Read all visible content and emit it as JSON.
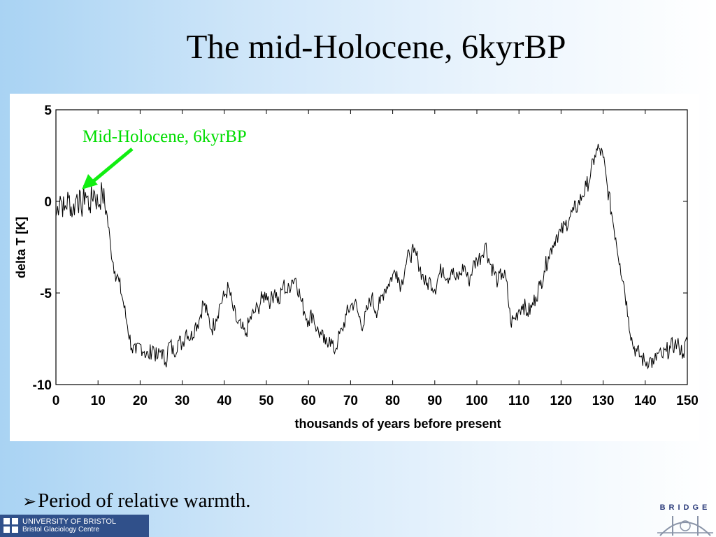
{
  "slide": {
    "title": "The mid-Holocene, 6kyrBP",
    "bullet": "Period of relative warmth.",
    "bullet_icon": "arrow-bullet-icon"
  },
  "footer": {
    "university_line1": "UNIVERSITY OF BRISTOL",
    "university_line2": "Bristol Glaciology Centre",
    "bridge_text": "BRIDGE"
  },
  "chart_data": {
    "type": "line",
    "title": "",
    "xlabel": "thousands of years before present",
    "ylabel": "delta T [K]",
    "xlim": [
      0,
      150
    ],
    "ylim": [
      -10,
      5
    ],
    "xticks": [
      0,
      10,
      20,
      30,
      40,
      50,
      60,
      70,
      80,
      90,
      100,
      110,
      120,
      130,
      140,
      150
    ],
    "yticks": [
      5,
      0,
      -5,
      -10
    ],
    "grid": false,
    "line_color": "#000000",
    "annotation": {
      "text": "Mid-Holocene, 6kyrBP",
      "x": 6,
      "y": 0.8,
      "color": "#00dd00"
    },
    "series": [
      {
        "name": "",
        "x": [
          0,
          1,
          2,
          3,
          4,
          5,
          6,
          7,
          8,
          9,
          10,
          11,
          12,
          13,
          14,
          15,
          16,
          17,
          18,
          19,
          20,
          21,
          22,
          23,
          24,
          25,
          26,
          27,
          28,
          29,
          30,
          31,
          32,
          33,
          34,
          35,
          36,
          37,
          38,
          39,
          40,
          41,
          42,
          43,
          44,
          45,
          46,
          47,
          48,
          49,
          50,
          51,
          52,
          53,
          54,
          55,
          56,
          57,
          58,
          59,
          60,
          61,
          62,
          63,
          64,
          65,
          66,
          67,
          68,
          69,
          70,
          71,
          72,
          73,
          74,
          75,
          76,
          77,
          78,
          79,
          80,
          81,
          82,
          83,
          84,
          85,
          86,
          87,
          88,
          89,
          90,
          91,
          92,
          93,
          94,
          95,
          96,
          97,
          98,
          99,
          100,
          101,
          102,
          103,
          104,
          105,
          106,
          107,
          108,
          109,
          110,
          111,
          112,
          113,
          114,
          115,
          116,
          117,
          118,
          119,
          120,
          121,
          122,
          123,
          124,
          125,
          126,
          127,
          128,
          129,
          130,
          131,
          132,
          133,
          134,
          135,
          136,
          137,
          138,
          139,
          140,
          141,
          142,
          143,
          144,
          145,
          146,
          147,
          148,
          149,
          150
        ],
        "y": [
          -0.8,
          0.3,
          -0.5,
          0.2,
          -0.6,
          0.4,
          -0.4,
          0.5,
          -0.3,
          0.6,
          -0.2,
          0.5,
          -0.5,
          -2.5,
          -3.8,
          -4.4,
          -5.5,
          -6.8,
          -8.0,
          -8.3,
          -7.8,
          -8.2,
          -8.5,
          -7.9,
          -8.6,
          -8.1,
          -8.8,
          -7.7,
          -8.3,
          -7.6,
          -7.8,
          -7.0,
          -7.5,
          -6.8,
          -6.5,
          -5.5,
          -6.2,
          -7.0,
          -6.4,
          -5.6,
          -5.2,
          -4.7,
          -5.8,
          -6.6,
          -6.9,
          -7.3,
          -6.5,
          -6.1,
          -5.8,
          -5.3,
          -5.0,
          -5.5,
          -4.8,
          -5.6,
          -4.5,
          -5.0,
          -4.3,
          -4.2,
          -5.2,
          -6.0,
          -6.5,
          -6.1,
          -7.0,
          -7.3,
          -7.8,
          -7.4,
          -8.2,
          -7.6,
          -7.0,
          -6.2,
          -5.7,
          -5.5,
          -6.3,
          -6.8,
          -5.9,
          -5.2,
          -6.0,
          -5.6,
          -4.8,
          -4.5,
          -4.0,
          -3.8,
          -4.6,
          -3.5,
          -2.9,
          -2.8,
          -3.2,
          -4.0,
          -4.6,
          -4.3,
          -4.8,
          -4.0,
          -3.6,
          -4.2,
          -3.7,
          -4.3,
          -4.0,
          -3.5,
          -4.4,
          -3.6,
          -3.2,
          -3.0,
          -2.3,
          -3.3,
          -3.8,
          -4.4,
          -3.9,
          -4.3,
          -6.6,
          -6.4,
          -5.9,
          -5.6,
          -6.1,
          -5.8,
          -5.2,
          -4.6,
          -3.8,
          -3.0,
          -2.4,
          -1.8,
          -1.7,
          -1.3,
          -0.9,
          -0.5,
          -0.2,
          0.3,
          0.8,
          1.4,
          2.5,
          2.9,
          2.4,
          0.8,
          -0.6,
          -2.0,
          -3.4,
          -4.6,
          -6.3,
          -7.8,
          -8.2,
          -8.5,
          -8.8,
          -8.6,
          -8.9,
          -8.3,
          -8.5,
          -8.2,
          -8.0,
          -7.8,
          -7.9,
          -8.3,
          -7.6
        ]
      }
    ]
  }
}
